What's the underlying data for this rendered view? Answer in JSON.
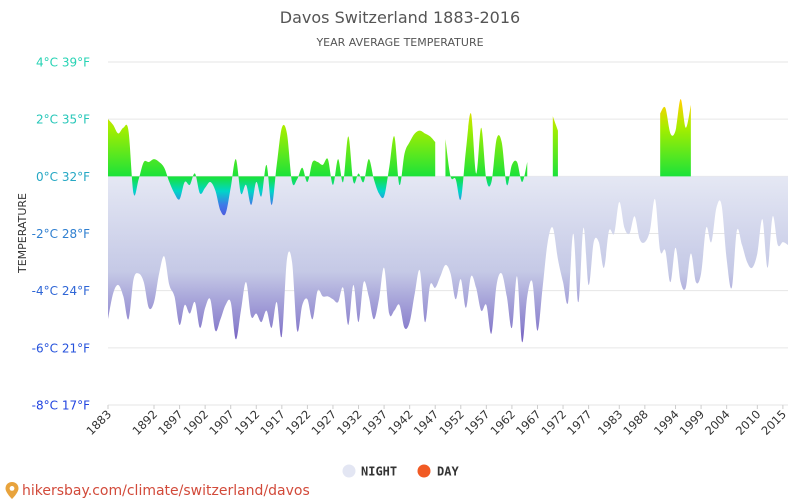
{
  "chart_data": {
    "type": "area",
    "title": "Davos Switzerland 1883-2016",
    "subtitle": "YEAR AVERAGE TEMPERATURE",
    "ylabel": "TEMPERATURE",
    "xlabel": "",
    "ylim": [
      -8,
      4
    ],
    "xlim": [
      1883,
      2016
    ],
    "y_ticks": [
      {
        "value": 4,
        "label": "4°C 39°F",
        "color": "#27d3b4"
      },
      {
        "value": 2,
        "label": "2°C 35°F",
        "color": "#27c7b9"
      },
      {
        "value": 0,
        "label": "0°C 32°F",
        "color": "#26a8c4"
      },
      {
        "value": -2,
        "label": "-2°C 28°F",
        "color": "#2f7fd0"
      },
      {
        "value": -4,
        "label": "-4°C 24°F",
        "color": "#2f66d6"
      },
      {
        "value": -6,
        "label": "-6°C 21°F",
        "color": "#2552dc"
      },
      {
        "value": -8,
        "label": "-8°C 17°F",
        "color": "#2244e0"
      }
    ],
    "x_ticks": [
      1883,
      1892,
      1897,
      1902,
      1907,
      1912,
      1917,
      1922,
      1927,
      1932,
      1937,
      1942,
      1947,
      1952,
      1957,
      1962,
      1967,
      1972,
      1977,
      1983,
      1988,
      1994,
      1999,
      2004,
      2010,
      2015
    ],
    "grid": true,
    "legend_position": "bottom-center",
    "series": [
      {
        "name": "NIGHT",
        "color": "#e3e6f3",
        "points": [
          [
            1883,
            -5.0
          ],
          [
            1884,
            -4.1
          ],
          [
            1885,
            -3.8
          ],
          [
            1886,
            -4.2
          ],
          [
            1887,
            -5.0
          ],
          [
            1888,
            -3.6
          ],
          [
            1889,
            -3.4
          ],
          [
            1890,
            -3.7
          ],
          [
            1891,
            -4.6
          ],
          [
            1892,
            -4.4
          ],
          [
            1893,
            -3.4
          ],
          [
            1894,
            -2.8
          ],
          [
            1895,
            -3.8
          ],
          [
            1896,
            -4.2
          ],
          [
            1897,
            -5.2
          ],
          [
            1898,
            -4.5
          ],
          [
            1899,
            -4.8
          ],
          [
            1900,
            -4.4
          ],
          [
            1901,
            -5.3
          ],
          [
            1902,
            -4.6
          ],
          [
            1903,
            -4.3
          ],
          [
            1904,
            -5.4
          ],
          [
            1905,
            -5.0
          ],
          [
            1906,
            -4.5
          ],
          [
            1907,
            -4.4
          ],
          [
            1908,
            -5.7
          ],
          [
            1909,
            -4.7
          ],
          [
            1910,
            -3.7
          ],
          [
            1911,
            -4.9
          ],
          [
            1912,
            -4.8
          ],
          [
            1913,
            -5.1
          ],
          [
            1914,
            -4.7
          ],
          [
            1915,
            -5.3
          ],
          [
            1916,
            -4.4
          ],
          [
            1917,
            -5.6
          ],
          [
            1918,
            -2.9
          ],
          [
            1919,
            -3.0
          ],
          [
            1920,
            -5.4
          ],
          [
            1921,
            -4.5
          ],
          [
            1922,
            -4.3
          ],
          [
            1923,
            -5.0
          ],
          [
            1924,
            -4.0
          ],
          [
            1925,
            -4.2
          ],
          [
            1926,
            -4.2
          ],
          [
            1927,
            -4.3
          ],
          [
            1928,
            -4.4
          ],
          [
            1929,
            -3.9
          ],
          [
            1930,
            -5.2
          ],
          [
            1931,
            -3.8
          ],
          [
            1932,
            -5.1
          ],
          [
            1933,
            -3.7
          ],
          [
            1934,
            -4.2
          ],
          [
            1935,
            -5.0
          ],
          [
            1936,
            -4.3
          ],
          [
            1937,
            -3.2
          ],
          [
            1938,
            -4.8
          ],
          [
            1939,
            -4.7
          ],
          [
            1940,
            -4.5
          ],
          [
            1941,
            -5.3
          ],
          [
            1942,
            -5.1
          ],
          [
            1943,
            -4.1
          ],
          [
            1944,
            -3.3
          ],
          [
            1945,
            -5.1
          ],
          [
            1946,
            -3.8
          ],
          [
            1947,
            -3.9
          ],
          [
            1948,
            -3.5
          ],
          [
            1949,
            -3.1
          ],
          [
            1950,
            -3.4
          ],
          [
            1951,
            -4.3
          ],
          [
            1952,
            -3.6
          ],
          [
            1953,
            -4.6
          ],
          [
            1954,
            -3.5
          ],
          [
            1955,
            -3.9
          ],
          [
            1956,
            -4.7
          ],
          [
            1957,
            -4.5
          ],
          [
            1958,
            -5.5
          ],
          [
            1959,
            -3.8
          ],
          [
            1960,
            -3.4
          ],
          [
            1961,
            -4.2
          ],
          [
            1962,
            -5.3
          ],
          [
            1963,
            -3.5
          ],
          [
            1964,
            -5.8
          ],
          [
            1965,
            -4.2
          ],
          [
            1966,
            -3.7
          ],
          [
            1967,
            -5.4
          ],
          [
            1968,
            -3.9
          ],
          [
            1969,
            -2.3
          ],
          [
            1970,
            -1.8
          ],
          [
            1971,
            -2.9
          ],
          [
            1972,
            -3.7
          ],
          [
            1973,
            -4.4
          ],
          [
            1974,
            -2.0
          ],
          [
            1975,
            -4.4
          ],
          [
            1976,
            -1.8
          ],
          [
            1977,
            -3.8
          ],
          [
            1978,
            -2.3
          ],
          [
            1979,
            -2.3
          ],
          [
            1980,
            -3.2
          ],
          [
            1981,
            -1.9
          ],
          [
            1982,
            -2.0
          ],
          [
            1983,
            -0.9
          ],
          [
            1984,
            -1.8
          ],
          [
            1985,
            -2.0
          ],
          [
            1986,
            -1.4
          ],
          [
            1987,
            -2.2
          ],
          [
            1988,
            -2.3
          ],
          [
            1989,
            -1.9
          ],
          [
            1990,
            -0.8
          ],
          [
            1991,
            -2.6
          ],
          [
            1992,
            -2.6
          ],
          [
            1993,
            -3.7
          ],
          [
            1994,
            -2.5
          ],
          [
            1995,
            -3.7
          ],
          [
            1996,
            -3.9
          ],
          [
            1997,
            -2.7
          ],
          [
            1998,
            -3.7
          ],
          [
            1999,
            -3.4
          ],
          [
            2000,
            -1.8
          ],
          [
            2001,
            -2.3
          ],
          [
            2002,
            -1.1
          ],
          [
            2003,
            -1.0
          ],
          [
            2004,
            -2.9
          ],
          [
            2005,
            -3.9
          ],
          [
            2006,
            -1.9
          ],
          [
            2007,
            -2.4
          ],
          [
            2008,
            -3.0
          ],
          [
            2009,
            -3.2
          ],
          [
            2010,
            -2.7
          ],
          [
            2011,
            -1.5
          ],
          [
            2012,
            -3.2
          ],
          [
            2013,
            -1.4
          ],
          [
            2014,
            -2.4
          ],
          [
            2015,
            -2.3
          ],
          [
            2016,
            -2.4
          ]
        ]
      },
      {
        "name": "DAY",
        "color": "#f15a24",
        "segments": [
          [
            [
              1883,
              2.0
            ],
            [
              1884,
              1.8
            ],
            [
              1885,
              1.5
            ],
            [
              1886,
              1.7
            ],
            [
              1887,
              1.6
            ],
            [
              1888,
              -0.6
            ],
            [
              1889,
              -0.1
            ],
            [
              1890,
              0.5
            ],
            [
              1891,
              0.5
            ],
            [
              1892,
              0.6
            ],
            [
              1893,
              0.5
            ],
            [
              1894,
              0.3
            ],
            [
              1895,
              -0.2
            ],
            [
              1896,
              -0.6
            ],
            [
              1897,
              -0.8
            ],
            [
              1898,
              -0.2
            ],
            [
              1899,
              -0.3
            ],
            [
              1900,
              0.1
            ],
            [
              1901,
              -0.6
            ],
            [
              1902,
              -0.4
            ],
            [
              1903,
              -0.2
            ],
            [
              1904,
              -0.5
            ],
            [
              1905,
              -1.2
            ],
            [
              1906,
              -1.3
            ],
            [
              1907,
              -0.4
            ],
            [
              1908,
              0.6
            ],
            [
              1909,
              -0.6
            ],
            [
              1910,
              -0.3
            ],
            [
              1911,
              -1.0
            ],
            [
              1912,
              -0.2
            ],
            [
              1913,
              -0.7
            ],
            [
              1914,
              0.4
            ],
            [
              1915,
              -1.0
            ],
            [
              1916,
              0.4
            ],
            [
              1917,
              1.7
            ],
            [
              1918,
              1.5
            ],
            [
              1919,
              -0.2
            ],
            [
              1920,
              -0.1
            ],
            [
              1921,
              0.3
            ],
            [
              1922,
              -0.2
            ],
            [
              1923,
              0.5
            ],
            [
              1924,
              0.5
            ],
            [
              1925,
              0.4
            ],
            [
              1926,
              0.6
            ],
            [
              1927,
              -0.3
            ],
            [
              1928,
              0.6
            ],
            [
              1929,
              -0.2
            ],
            [
              1930,
              1.4
            ],
            [
              1931,
              -0.2
            ],
            [
              1932,
              0.1
            ],
            [
              1933,
              -0.2
            ],
            [
              1934,
              0.6
            ],
            [
              1935,
              -0.1
            ],
            [
              1936,
              -0.6
            ],
            [
              1937,
              -0.7
            ],
            [
              1938,
              0.3
            ],
            [
              1939,
              1.4
            ],
            [
              1940,
              -0.3
            ],
            [
              1941,
              0.8
            ],
            [
              1942,
              1.2
            ],
            [
              1943,
              1.5
            ],
            [
              1944,
              1.6
            ],
            [
              1945,
              1.5
            ],
            [
              1946,
              1.4
            ],
            [
              1947,
              1.2
            ]
          ],
          [
            [
              1949,
              1.3
            ],
            [
              1950,
              0.0
            ],
            [
              1951,
              -0.1
            ],
            [
              1952,
              -0.8
            ],
            [
              1953,
              0.9
            ],
            [
              1954,
              2.2
            ],
            [
              1955,
              0.1
            ],
            [
              1956,
              1.7
            ],
            [
              1957,
              -0.1
            ],
            [
              1958,
              -0.2
            ],
            [
              1959,
              1.3
            ],
            [
              1960,
              1.2
            ],
            [
              1961,
              -0.3
            ],
            [
              1962,
              0.4
            ],
            [
              1963,
              0.5
            ],
            [
              1964,
              -0.2
            ],
            [
              1965,
              0.5
            ]
          ],
          [
            [
              1970,
              2.1
            ],
            [
              1971,
              1.6
            ]
          ],
          [
            [
              1991,
              2.2
            ],
            [
              1992,
              2.4
            ],
            [
              1993,
              1.5
            ],
            [
              1994,
              1.6
            ],
            [
              1995,
              2.7
            ],
            [
              1996,
              1.7
            ],
            [
              1997,
              2.5
            ]
          ]
        ]
      }
    ]
  },
  "legend": {
    "night_label": "NIGHT",
    "day_label": "DAY",
    "night_color": "#e3e6f3",
    "day_color": "#f15a24"
  },
  "source": {
    "text": "hikersbay.com/climate/switzerland/davos",
    "icon": "map-pin-icon",
    "color": "#d24a3a"
  }
}
